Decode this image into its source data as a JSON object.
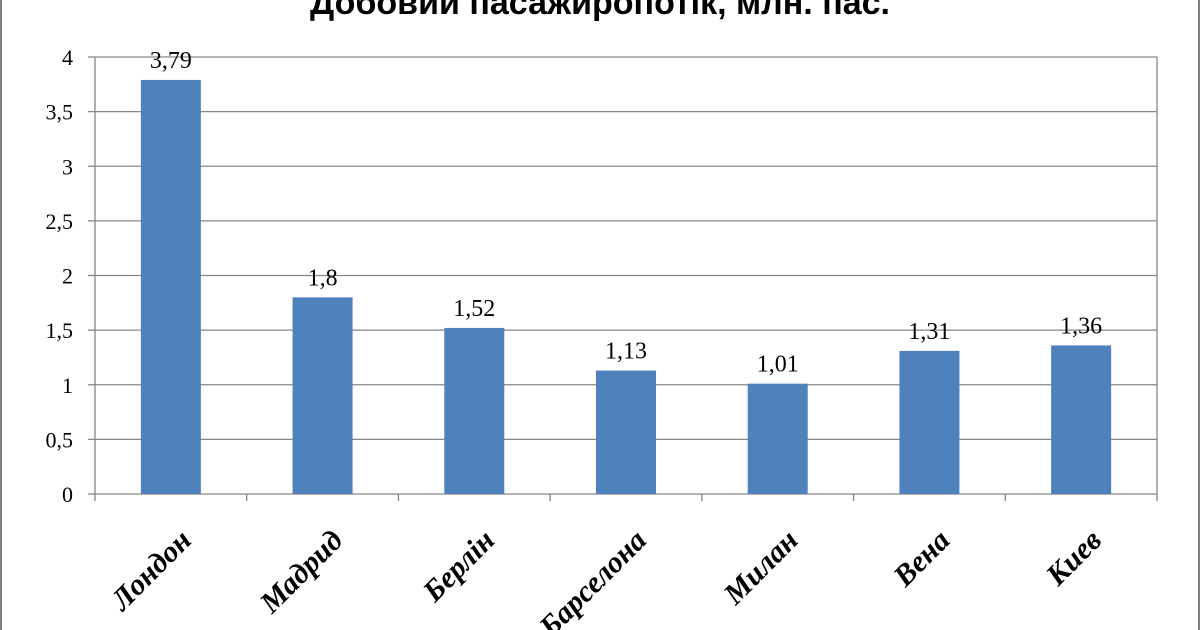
{
  "chart_data": {
    "type": "bar",
    "title": "Добовий пасажиропотік, млн. пас.",
    "categories": [
      "Лондон",
      "Мадрид",
      "Берлін",
      "Барселона",
      "Милан",
      "Вена",
      "Киев"
    ],
    "values": [
      3.79,
      1.8,
      1.52,
      1.13,
      1.01,
      1.31,
      1.36
    ],
    "data_labels": [
      "3,79",
      "1,8",
      "1,52",
      "1,13",
      "1,01",
      "1,31",
      "1,36"
    ],
    "ylim": [
      0,
      4
    ],
    "yticks": [
      0,
      0.5,
      1,
      1.5,
      2,
      2.5,
      3,
      3.5,
      4
    ],
    "ytick_labels": [
      "0",
      "0,5",
      "1",
      "1,5",
      "2",
      "2,5",
      "3",
      "3,5",
      "4"
    ],
    "grid": true,
    "legend": "none",
    "bar_color": "#4f81bd",
    "grid_color": "#868686"
  }
}
